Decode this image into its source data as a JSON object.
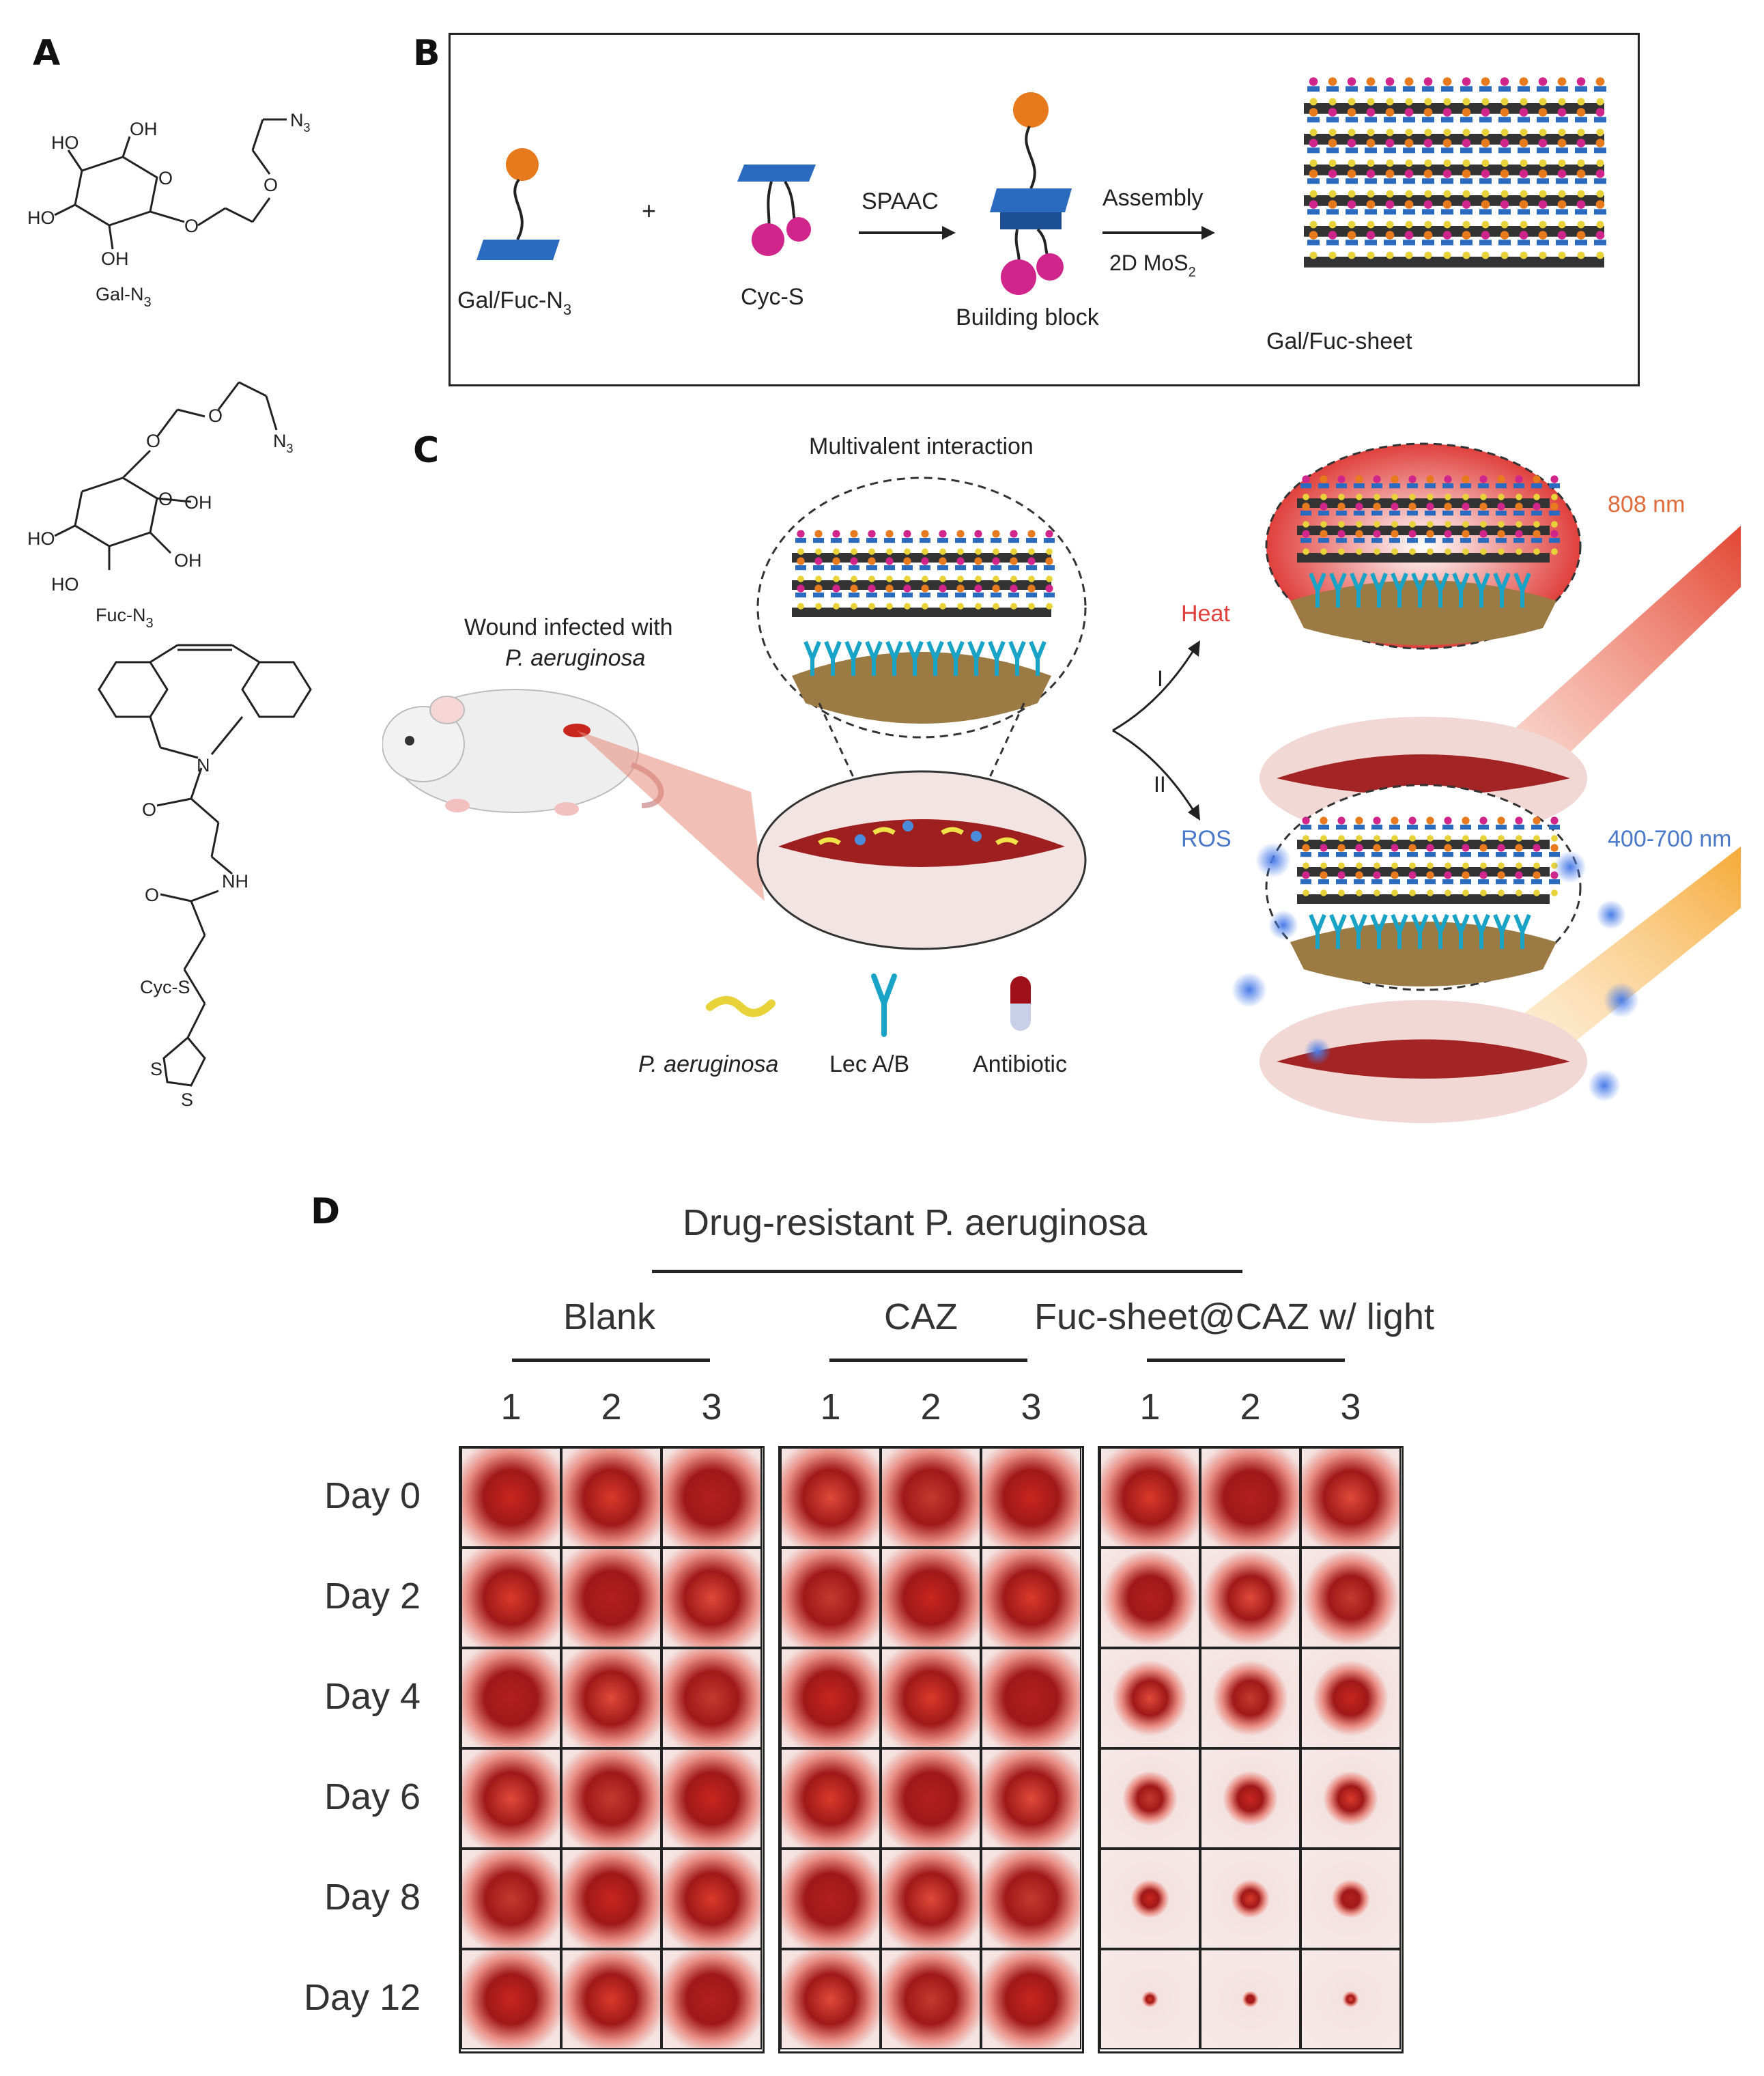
{
  "panelA": {
    "label": "A",
    "gal": {
      "name": "Gal-N",
      "sub": "3",
      "ho1": "HO",
      "oh1": "OH",
      "ho2": "HO",
      "oh2": "OH",
      "o_ring": "O",
      "o_link": "O",
      "o_ether": "O",
      "n3": "N",
      "n3sub": "3"
    },
    "fuc": {
      "name": "Fuc-N",
      "sub": "3",
      "ho1": "HO",
      "oh1": "OH",
      "ho2": "HO",
      "oh2": "OH",
      "o_ring": "O",
      "o_link": "O",
      "o_ether": "O",
      "n3": "N",
      "n3sub": "3"
    },
    "cyc": {
      "name": "Cyc-S",
      "n": "N",
      "o1": "O",
      "nh": "NH",
      "o2": "O",
      "s1": "S",
      "s2": "S"
    }
  },
  "panelB": {
    "label": "B",
    "item1": "Gal/Fuc-N",
    "item1sub": "3",
    "plus": "+",
    "item2": "Cyc-S",
    "arrow1": "SPAAC",
    "item3": "Building block",
    "arrow2top": "Assembly",
    "arrow2bot": "2D MoS",
    "arrow2sub": "2",
    "item4": "Gal/Fuc-sheet"
  },
  "panelC": {
    "label": "C",
    "multivalent": "Multivalent interaction",
    "wound1": "Wound infected with",
    "wound2": "P. aeruginosa",
    "path1": "I",
    "path2": "II",
    "heat": "Heat",
    "ros": "ROS",
    "nm808": "808 nm",
    "nm400": "400-700 nm",
    "legend": [
      "P. aeruginosa",
      "Lec A/B",
      "Antibiotic"
    ]
  },
  "panelD": {
    "label": "D",
    "title": "Drug-resistant P. aeruginosa",
    "groups": [
      "Blank",
      "CAZ",
      "Fuc-sheet@CAZ w/ light"
    ],
    "replicates": [
      "1",
      "2",
      "3"
    ],
    "days": [
      "Day 0",
      "Day 2",
      "Day 4",
      "Day 6",
      "Day 8",
      "Day 12"
    ]
  },
  "colors": {
    "wound_red": "#c8261e",
    "skin": "#f2dad8",
    "sheet_blue": "#2a6bbf",
    "sheet_magenta": "#d0268c",
    "sheet_orange": "#e87a1e",
    "sheet_yellow": "#e8d23a"
  }
}
